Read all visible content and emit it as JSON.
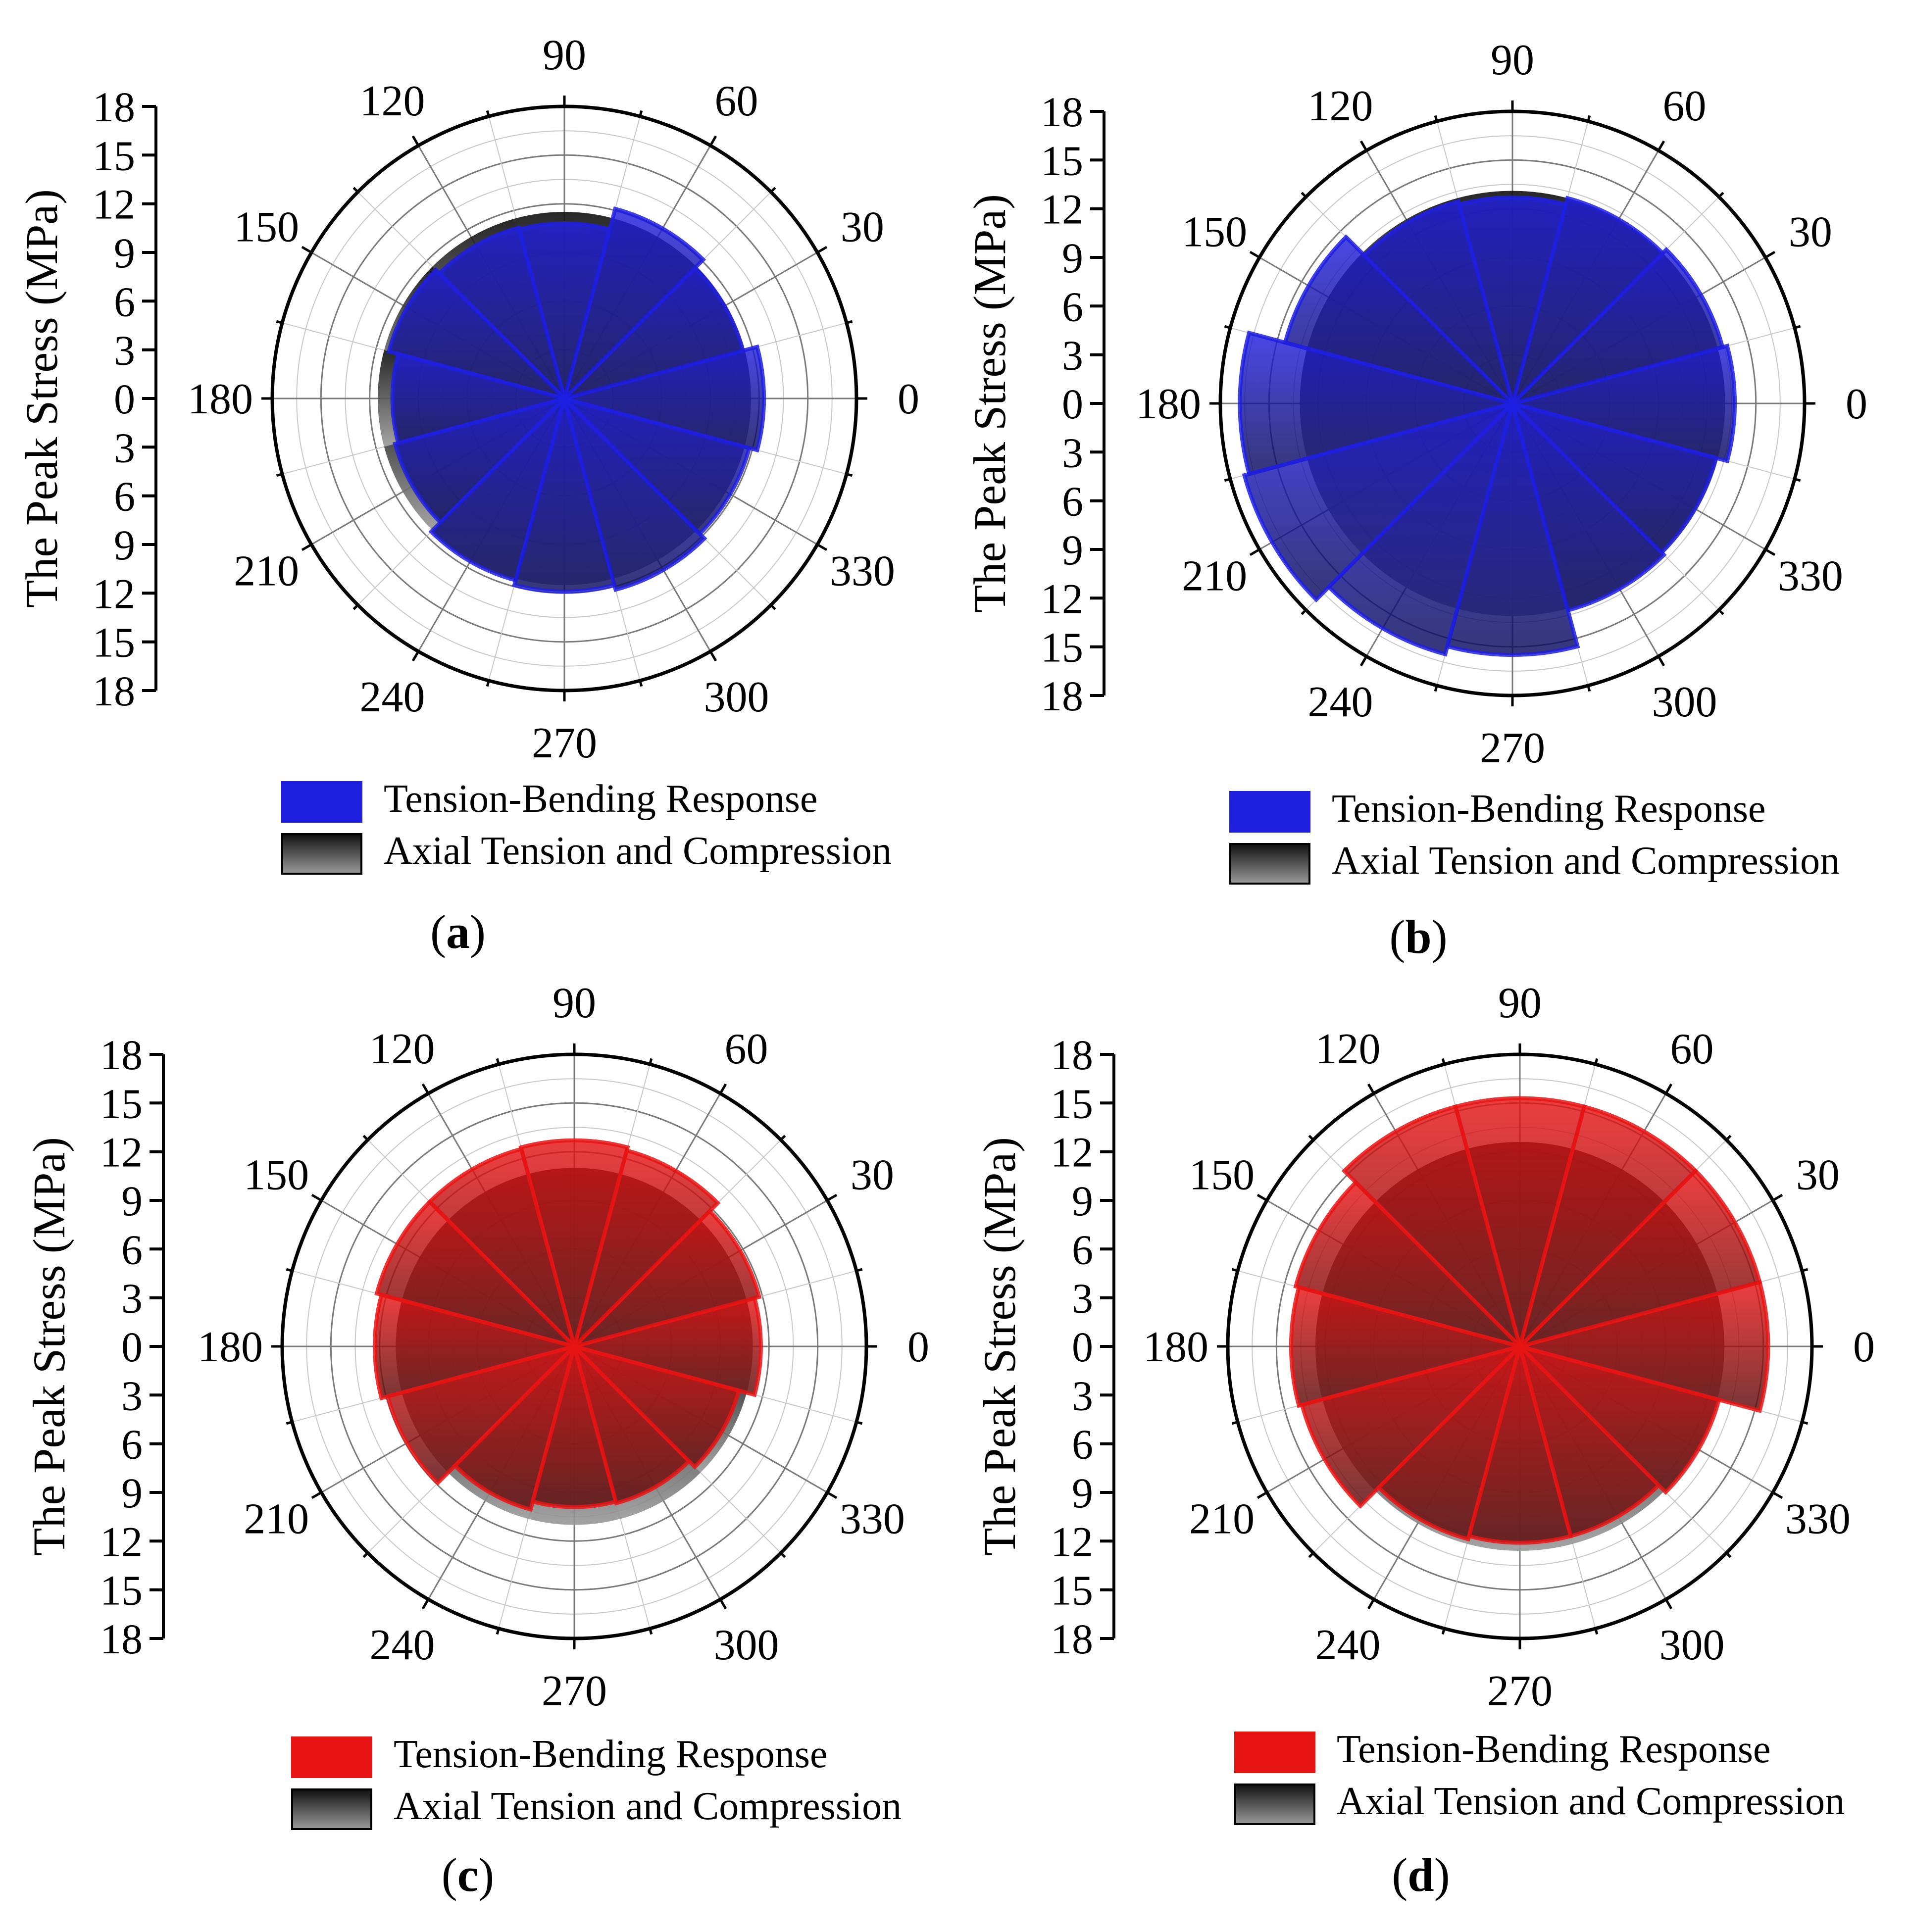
{
  "figure": {
    "panels": [
      {
        "id": "a",
        "caption": "(a)",
        "caption_letter": "a",
        "caption_open": "(",
        "caption_close": ")",
        "color_theme": "blue"
      },
      {
        "id": "b",
        "caption": "(b)",
        "caption_letter": "b",
        "caption_open": "(",
        "caption_close": ")",
        "color_theme": "blue"
      },
      {
        "id": "c",
        "caption": "(c)",
        "caption_letter": "c",
        "caption_open": "(",
        "caption_close": ")",
        "color_theme": "red"
      },
      {
        "id": "d",
        "caption": "(d)",
        "caption_letter": "d",
        "caption_open": "(",
        "caption_close": ")",
        "color_theme": "red"
      }
    ],
    "colors": {
      "blue": "#1f1fe0",
      "blue_dark": "#0a0a5a",
      "red": "#e81414",
      "red_dark": "#5a0a0a",
      "gray_light": "#9a9a9a",
      "gray_dark": "#101010",
      "grid": "#c8c8c8",
      "grid_major": "#7a7a7a",
      "axis": "#000000"
    }
  },
  "chart_data": [
    {
      "type": "polar-bar",
      "panel": "a",
      "radial_axis": {
        "label": "The Peak Stress (MPa)",
        "ticks": [
          "18",
          "15",
          "12",
          "9",
          "6",
          "3",
          "0",
          "3",
          "6",
          "9",
          "12",
          "15",
          "18"
        ],
        "range": [
          0,
          18
        ]
      },
      "angular_axis": {
        "unit": "degrees",
        "labels": [
          "0",
          "30",
          "60",
          "90",
          "120",
          "150",
          "180",
          "210",
          "240",
          "270",
          "300",
          "330"
        ]
      },
      "angles": [
        0,
        30,
        60,
        90,
        120,
        150,
        180,
        210,
        240,
        270,
        300,
        330
      ],
      "series": [
        {
          "name": "Axial Tension and Compression",
          "values": [
            11.5,
            11.5,
            11.5,
            11.5,
            11.5,
            11.5,
            11.5,
            11.5,
            11.5,
            11.5,
            11.5,
            11.5
          ]
        },
        {
          "name": "Tension-Bending Response",
          "values": [
            12.3,
            11.4,
            12.1,
            10.8,
            10.9,
            11.2,
            10.6,
            10.8,
            11.6,
            11.9,
            12.2,
            11.8
          ]
        }
      ],
      "legend": [
        "Tension-Bending Response",
        "Axial Tension and Compression"
      ]
    },
    {
      "type": "polar-bar",
      "panel": "b",
      "radial_axis": {
        "label": "The Peak Stress (MPa)",
        "ticks": [
          "18",
          "15",
          "12",
          "9",
          "6",
          "3",
          "0",
          "3",
          "6",
          "9",
          "12",
          "15",
          "18"
        ],
        "range": [
          0,
          18
        ]
      },
      "angular_axis": {
        "unit": "degrees",
        "labels": [
          "0",
          "30",
          "60",
          "90",
          "120",
          "150",
          "180",
          "210",
          "240",
          "270",
          "300",
          "330"
        ]
      },
      "angles": [
        0,
        30,
        60,
        90,
        120,
        150,
        180,
        210,
        240,
        270,
        300,
        330
      ],
      "series": [
        {
          "name": "Axial Tension and Compression",
          "values": [
            13.1,
            13.1,
            13.1,
            13.1,
            13.1,
            13.1,
            13.1,
            13.1,
            13.1,
            13.1,
            13.1,
            13.1
          ]
        },
        {
          "name": "Tension-Bending Response",
          "values": [
            13.7,
            13.4,
            13.1,
            12.7,
            12.9,
            14.5,
            16.8,
            17.1,
            16.0,
            15.5,
            13.2,
            13.0
          ]
        }
      ],
      "legend": [
        "Tension-Bending Response",
        "Axial Tension and Compression"
      ]
    },
    {
      "type": "polar-bar",
      "panel": "c",
      "radial_axis": {
        "label": "The Peak Stress (MPa)",
        "ticks": [
          "18",
          "15",
          "12",
          "9",
          "6",
          "3",
          "0",
          "3",
          "6",
          "9",
          "12",
          "15",
          "18"
        ],
        "range": [
          0,
          18
        ]
      },
      "angular_axis": {
        "unit": "degrees",
        "labels": [
          "0",
          "30",
          "60",
          "90",
          "120",
          "150",
          "180",
          "210",
          "240",
          "270",
          "300",
          "330"
        ]
      },
      "angles": [
        0,
        30,
        60,
        90,
        120,
        150,
        180,
        210,
        240,
        270,
        300,
        330
      ],
      "series": [
        {
          "name": "Axial Tension and Compression",
          "values": [
            11.0,
            11.0,
            11.0,
            11.0,
            11.0,
            11.0,
            11.0,
            11.0,
            11.0,
            11.0,
            11.0,
            11.0
          ]
        },
        {
          "name": "Tension-Bending Response",
          "values": [
            11.5,
            11.8,
            12.5,
            12.7,
            12.6,
            12.6,
            12.3,
            11.9,
            10.4,
            9.9,
            10.0,
            10.5
          ]
        }
      ],
      "legend": [
        "Tension-Bending Response",
        "Axial Tension and Compression"
      ]
    },
    {
      "type": "polar-bar",
      "panel": "d",
      "radial_axis": {
        "label": "The Peak Stress (MPa)",
        "ticks": [
          "18",
          "15",
          "12",
          "9",
          "6",
          "3",
          "0",
          "3",
          "6",
          "9",
          "12",
          "15",
          "18"
        ],
        "range": [
          0,
          18
        ]
      },
      "angular_axis": {
        "unit": "degrees",
        "labels": [
          "0",
          "30",
          "60",
          "90",
          "120",
          "150",
          "180",
          "210",
          "240",
          "270",
          "300",
          "330"
        ]
      },
      "angles": [
        0,
        30,
        60,
        90,
        120,
        150,
        180,
        210,
        240,
        270,
        300,
        330
      ],
      "series": [
        {
          "name": "Axial Tension and Compression",
          "values": [
            12.6,
            12.6,
            12.6,
            12.6,
            12.6,
            12.6,
            12.6,
            12.6,
            12.6,
            12.6,
            12.6,
            12.6
          ]
        },
        {
          "name": "Tension-Bending Response",
          "values": [
            15.3,
            15.3,
            15.3,
            15.3,
            15.3,
            14.3,
            14.1,
            13.9,
            12.3,
            12.1,
            12.1,
            12.7
          ]
        }
      ],
      "legend": [
        "Tension-Bending Response",
        "Axial Tension and Compression"
      ]
    }
  ]
}
